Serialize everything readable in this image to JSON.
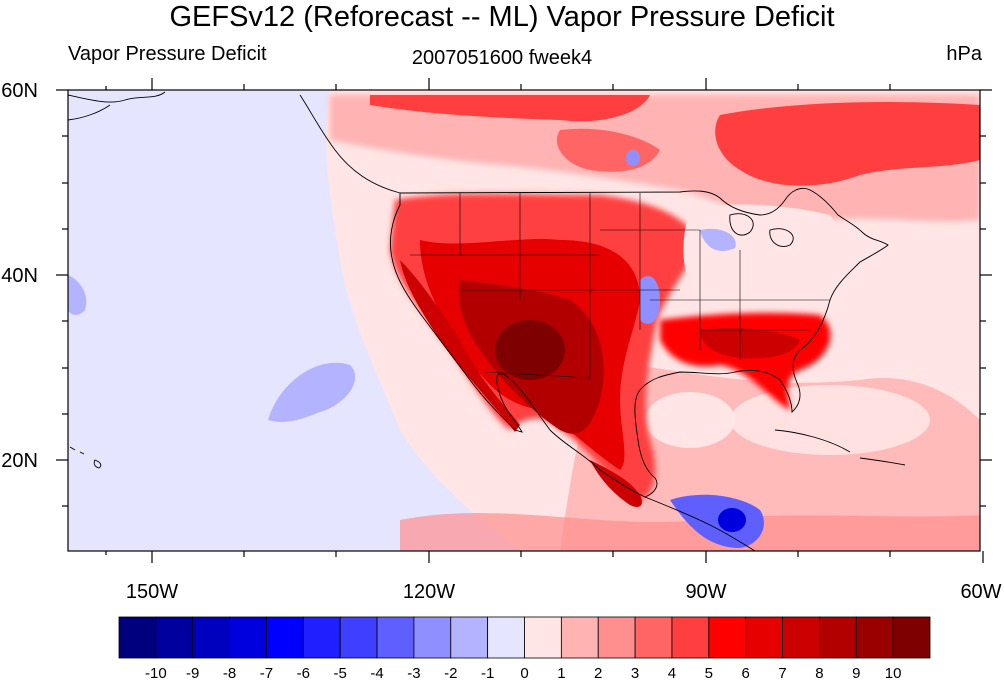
{
  "title": "GEFSv12 (Reforecast -- ML) Vapor Pressure Deficit",
  "left_string": "Vapor Pressure Deficit",
  "center_string": "2007051600 fweek4",
  "right_string": "hPa",
  "lat_labels": [
    "60N",
    "40N",
    "20N"
  ],
  "lon_labels": [
    "150W",
    "120W",
    "90W",
    "60W"
  ],
  "colorbar": {
    "labels": [
      "-10",
      "-9",
      "-8",
      "-7",
      "-6",
      "-5",
      "-4",
      "-3",
      "-2",
      "-1",
      "0",
      "1",
      "2",
      "3",
      "4",
      "5",
      "6",
      "7",
      "8",
      "9",
      "10"
    ],
    "colors": [
      "#00007f",
      "#00009f",
      "#0000bf",
      "#0000df",
      "#0000ff",
      "#1f1fff",
      "#3f3fff",
      "#5f5fff",
      "#8f8fff",
      "#b3b3ff",
      "#e5e5ff",
      "#ffe5e5",
      "#ffb3b3",
      "#ff8f8f",
      "#ff6565",
      "#ff3f3f",
      "#ff0000",
      "#e60000",
      "#cc0000",
      "#b20000",
      "#990000",
      "#7f0000"
    ]
  }
}
